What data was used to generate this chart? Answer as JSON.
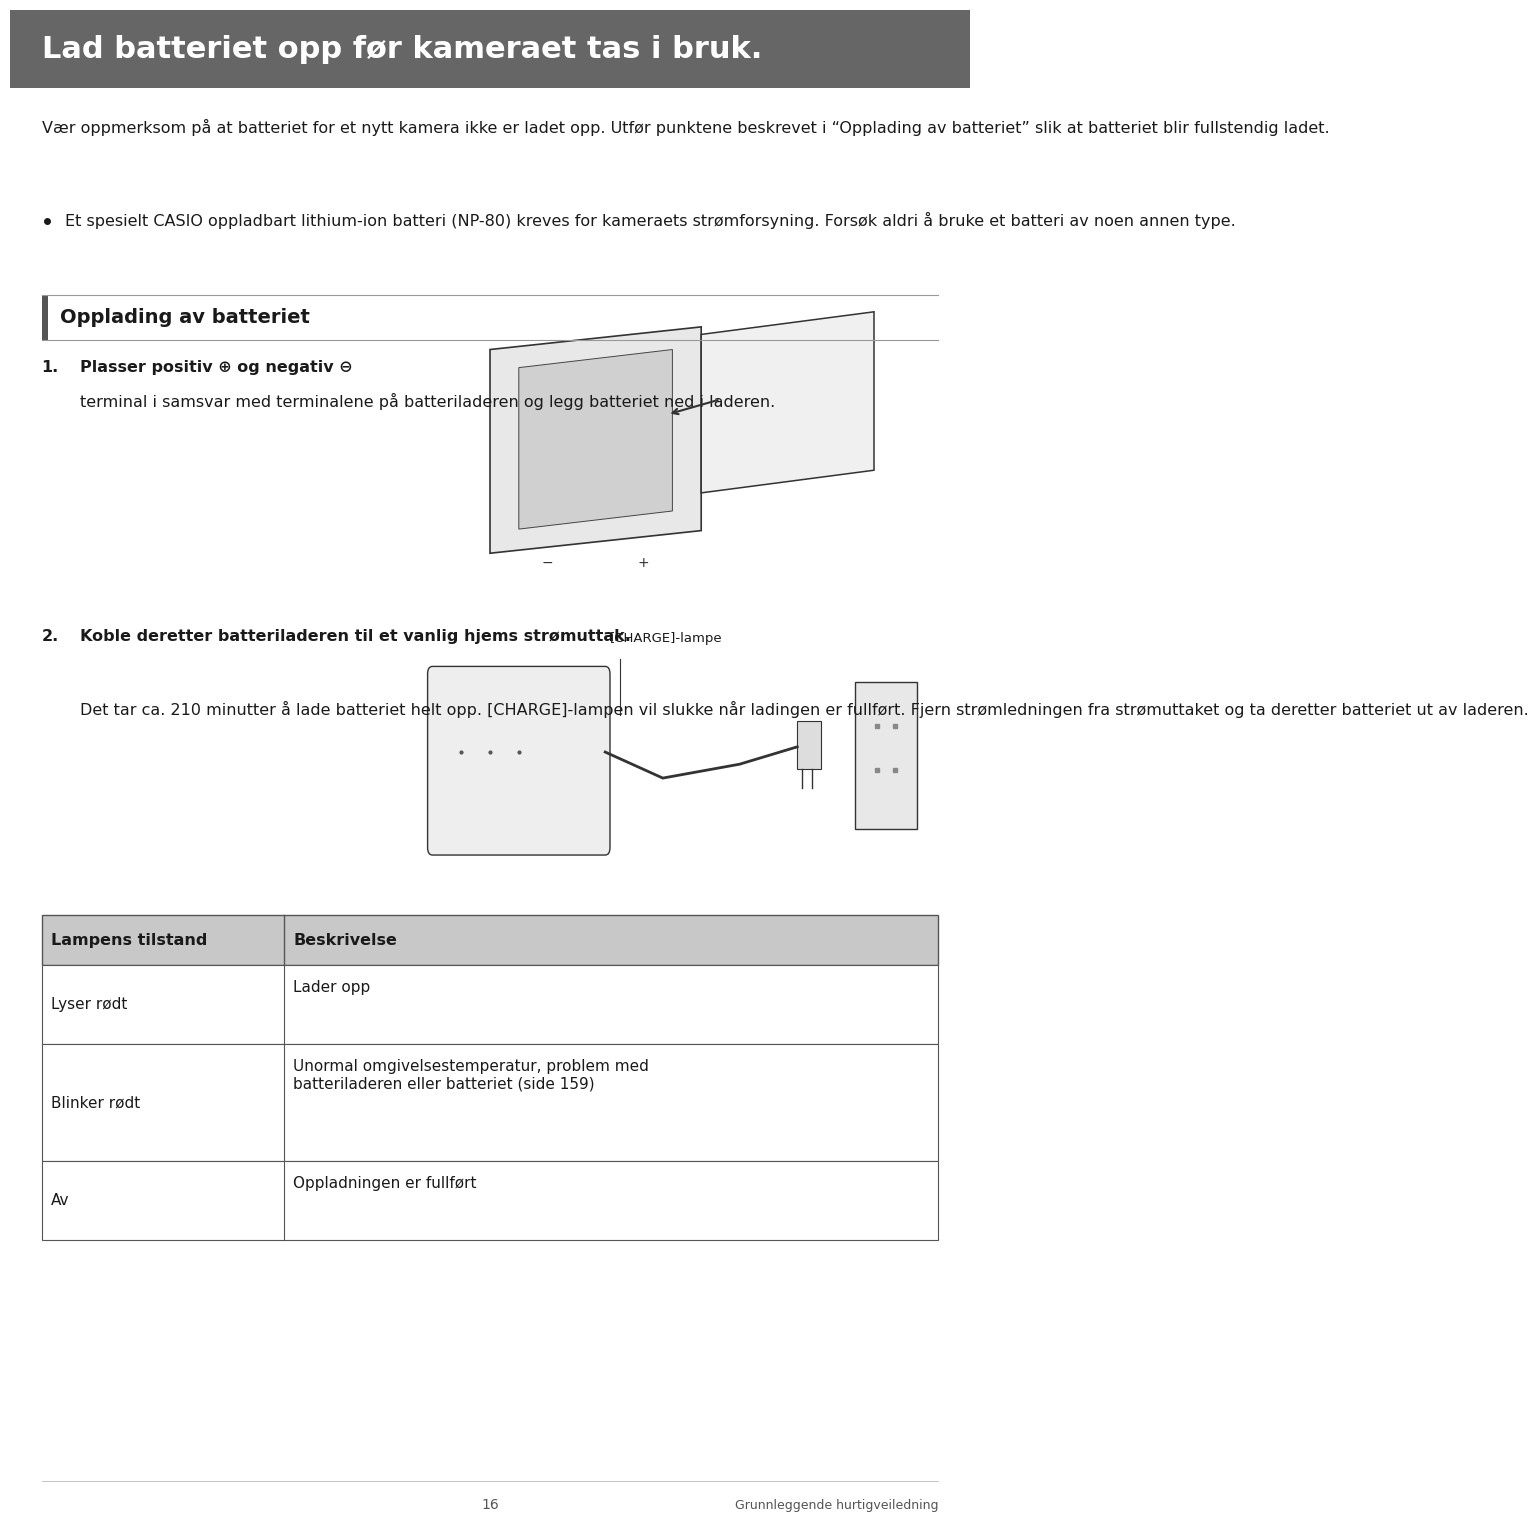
{
  "page_width": 9.6,
  "page_height": 15.09,
  "bg_color": "#ffffff",
  "header_bg": "#666666",
  "header_text": "Lad batteriet opp før kameraet tas i bruk.",
  "header_text_color": "#ffffff",
  "header_font_size": 22,
  "body_font_size": 11.5,
  "body_color": "#1a1a1a",
  "paragraph1": "Vær oppmerksom på at batteriet for et nytt kamera ikke er ladet opp. Utfør punktene beskrevet i “Opplading av batteriet” slik at batteriet blir fullstendig ladet.",
  "bullet_text": "Et spesielt CASIO oppladbart lithium-ion batteri (NP-80) kreves for kameraets strømforsyning. Forsøk aldri å bruke et batteri av noen annen type.",
  "section_header": "Opplading av batteriet",
  "section_header_bar_color": "#555555",
  "step1_bold": "Plasser positiv ⊕ og negativ ⊖",
  "step1_rest": "terminal i samsvar med terminalene på batteriladeren og legg batteriet ned i laderen.",
  "step2_bold": "Koble deretter batteriladeren til et vanlig hjems strømuttak.",
  "step2_rest": "Det tar ca. 210 minutter å lade batteriet helt opp. [CHARGE]-lampen vil slukke når ladingen er fullført. Fjern strømledningen fra strømuttaket og ta deretter batteriet ut av laderen.",
  "charge_label": "[CHARGE]-lampe",
  "table_header_bg": "#c8c8c8",
  "table_border_color": "#555555",
  "table_col1_header": "Lampens tilstand",
  "table_col2_header": "Beskrivelse",
  "table_rows": [
    [
      "Lyser rødt",
      "Lader opp"
    ],
    [
      "Blinker rødt",
      "Unormal omgivelsestemperatur, problem med\nbatteriladeren eller batteriet (side 159)"
    ],
    [
      "Av",
      "Oppladningen er fullført"
    ]
  ],
  "footer_page": "16",
  "footer_right": "Grunnleggende hurtigveiledning",
  "footer_color": "#555555"
}
